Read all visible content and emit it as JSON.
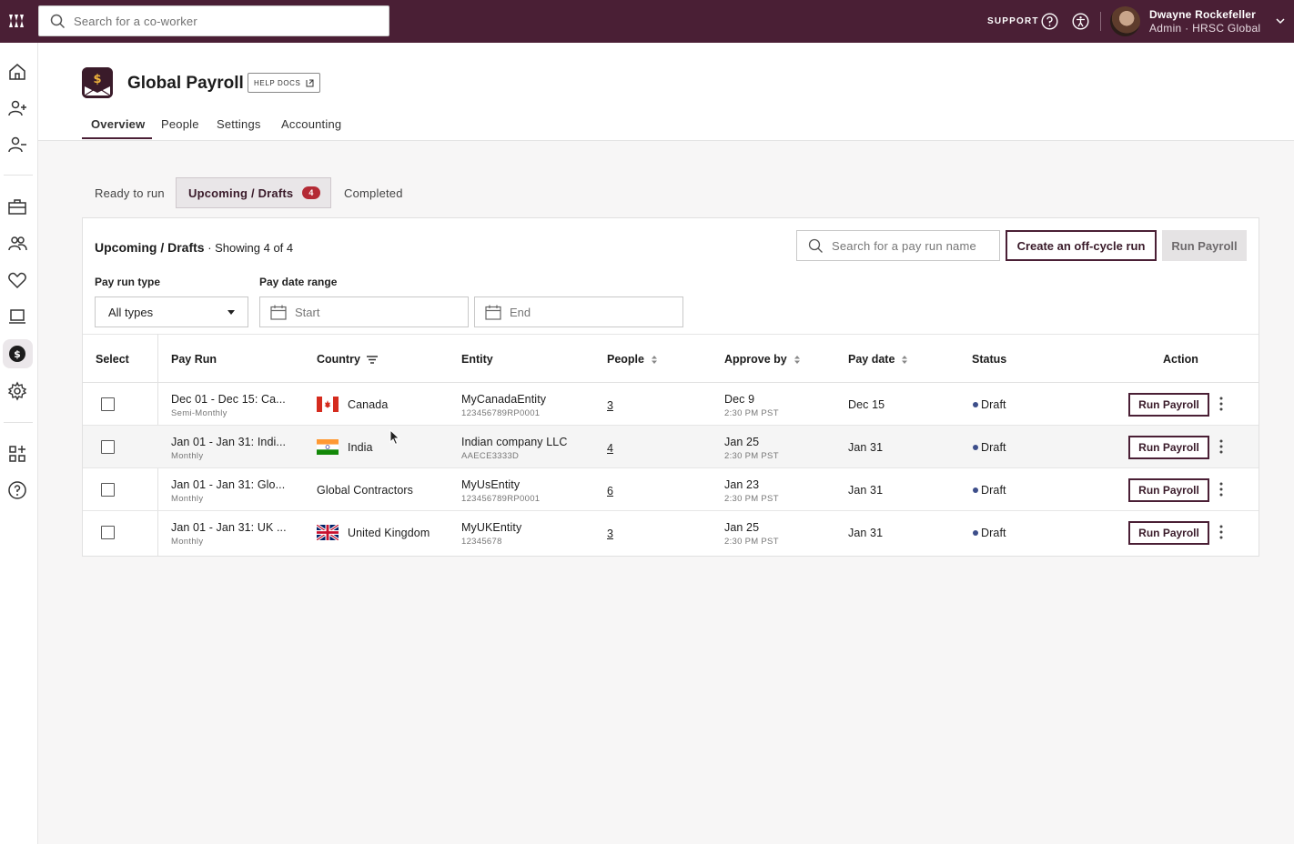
{
  "topbar": {
    "search_placeholder": "Search for a co-worker",
    "support_label": "SUPPORT",
    "user_name": "Dwayne Rockefeller",
    "user_role": "Admin · HRSC Global",
    "icons": [
      "logo-icon",
      "search-icon",
      "help-icon",
      "accessibility-icon",
      "chevron-down-icon"
    ]
  },
  "sidebar": {
    "icons": [
      "home-icon",
      "add-user-icon",
      "remove-user-icon",
      "briefcase-icon",
      "people-icon",
      "heart-icon",
      "laptop-icon",
      "payroll-icon",
      "gear-icon",
      "apps-icon",
      "help-icon"
    ],
    "active": "payroll-icon"
  },
  "header": {
    "title": "Global Payroll",
    "help_docs": "HELP DOCS",
    "tabs": [
      "Overview",
      "People",
      "Settings",
      "Accounting"
    ],
    "active_tab": "Overview"
  },
  "subtabs": {
    "ready": "Ready to run",
    "upcoming": "Upcoming / Drafts",
    "upcoming_count": "4",
    "completed": "Completed"
  },
  "card": {
    "title": "Upcoming / Drafts",
    "showing": " · Showing 4 of 4",
    "search_placeholder": "Search for a pay run name",
    "offcycle_button": "Create an off-cycle run",
    "run_payroll_button": "Run Payroll",
    "pay_run_type_label": "Pay run type",
    "pay_run_type_value": "All types",
    "pay_date_range_label": "Pay date range",
    "start_placeholder": "Start",
    "end_placeholder": "End"
  },
  "table": {
    "headers": {
      "select": "Select",
      "pay_run": "Pay Run",
      "country": "Country",
      "entity": "Entity",
      "people": "People",
      "approve_by": "Approve by",
      "pay_date": "Pay date",
      "status": "Status",
      "action": "Action"
    },
    "rows": [
      {
        "pay_run": "Dec 01 - Dec 15: Ca...",
        "frequency": "Semi-Monthly",
        "country": "Canada",
        "flag": "canada-flag-icon",
        "entity": "MyCanadaEntity",
        "entity_id": "123456789RP0001",
        "people": "3",
        "approve_date": "Dec 9",
        "approve_time": "2:30 PM PST",
        "pay_date": "Dec 15",
        "status": "Draft",
        "action": "Run Payroll"
      },
      {
        "pay_run": "Jan 01 - Jan 31: Indi...",
        "frequency": "Monthly",
        "country": "India",
        "flag": "india-flag-icon",
        "entity": "Indian company LLC",
        "entity_id": "AAECE3333D",
        "people": "4",
        "approve_date": "Jan 25",
        "approve_time": "2:30 PM PST",
        "pay_date": "Jan 31",
        "status": "Draft",
        "action": "Run Payroll"
      },
      {
        "pay_run": "Jan 01 - Jan 31: Glo...",
        "frequency": "Monthly",
        "country": "Global Contractors",
        "flag": "",
        "entity": "MyUsEntity",
        "entity_id": "123456789RP0001",
        "people": "6",
        "approve_date": "Jan 23",
        "approve_time": "2:30 PM PST",
        "pay_date": "Jan 31",
        "status": "Draft",
        "action": "Run Payroll"
      },
      {
        "pay_run": "Jan 01 - Jan 31: UK ...",
        "frequency": "Monthly",
        "country": "United Kingdom",
        "flag": "uk-flag-icon",
        "entity": "MyUKEntity",
        "entity_id": "12345678",
        "people": "3",
        "approve_date": "Jan 25",
        "approve_time": "2:30 PM PST",
        "pay_date": "Jan 31",
        "status": "Draft",
        "action": "Run Payroll"
      }
    ]
  },
  "colors": {
    "brand": "#4a1f35",
    "badge": "#b42a35",
    "status_dot": "#3d4e8a"
  }
}
